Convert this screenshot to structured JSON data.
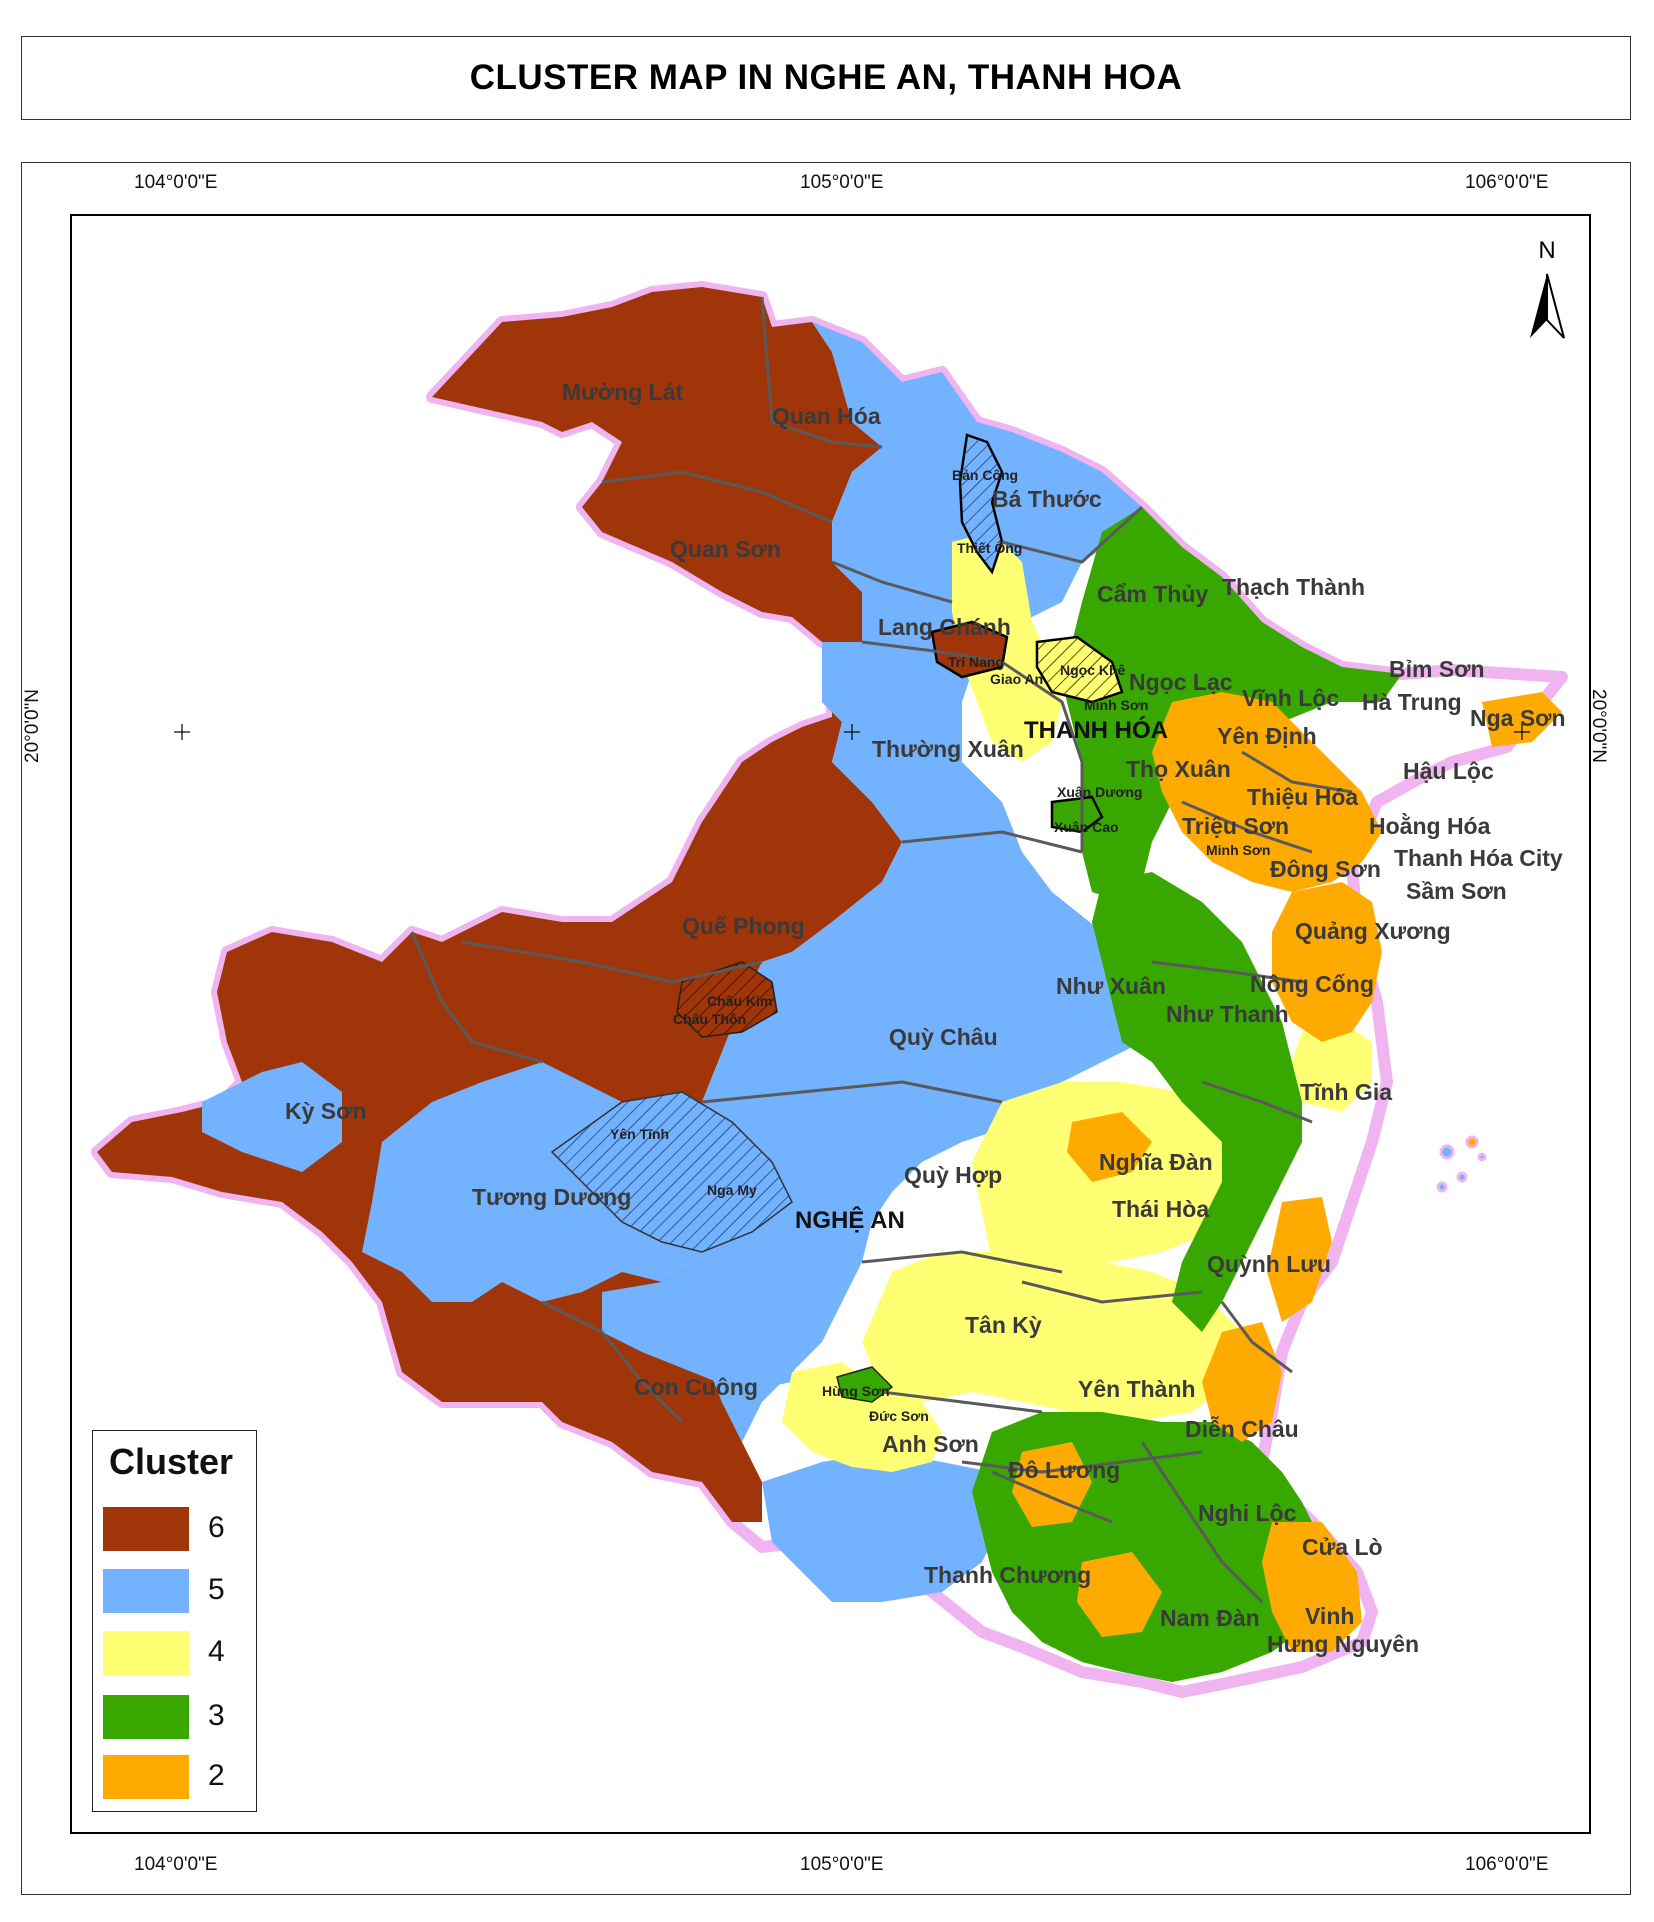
{
  "title": "CLUSTER MAP IN NGHE AN, THANH HOA",
  "coordinates": {
    "top": [
      "104°0'0\"E",
      "105°0'0\"E",
      "106°0'0\"E"
    ],
    "bottom": [
      "104°0'0\"E",
      "105°0'0\"E",
      "106°0'0\"E"
    ],
    "left": "20°0'0\"N",
    "right": "20°0'0\"N"
  },
  "north_label": "N",
  "provinces": {
    "thanh_hoa": "THANH HÓA",
    "nghe_an": "NGHỆ AN"
  },
  "colors": {
    "c6": "#A0350A",
    "c5": "#73B2FF",
    "c4": "#FFFF73",
    "c3": "#38A800",
    "c2": "#FFAA00",
    "border": "#5a5a5a",
    "coast_glow": "#f0b4f0"
  },
  "legend": {
    "title": "Cluster",
    "items": [
      {
        "label": "6",
        "color": "#A0350A"
      },
      {
        "label": "5",
        "color": "#73B2FF"
      },
      {
        "label": "4",
        "color": "#FFFF73"
      },
      {
        "label": "3",
        "color": "#38A800"
      },
      {
        "label": "2",
        "color": "#FFAA00"
      }
    ]
  },
  "district_labels": {
    "muong_lat": "Mường Lát",
    "quan_hoa": "Quan Hóa",
    "quan_son": "Quan Sơn",
    "ba_thuoc": "Bá Thước",
    "cam_thuy": "Cẩm Thủy",
    "thach_thanh": "Thạch Thành",
    "lang_chanh": "Lang Chánh",
    "ngoc_lac": "Ngọc Lạc",
    "bim_son": "Bỉm Sơn",
    "vinh_loc": "Vĩnh Lộc",
    "ha_trung": "Hà Trung",
    "nga_son": "Nga Sơn",
    "yen_dinh": "Yên Định",
    "thuong_xuan": "Thường Xuân",
    "tho_xuan": "Thọ Xuân",
    "hau_loc": "Hậu Lộc",
    "thieu_hoa": "Thiệu Hóa",
    "hoang_hoa": "Hoằng Hóa",
    "trieu_son": "Triệu Sơn",
    "thanh_hoa_city": "Thanh Hóa City",
    "dong_son": "Đông Sơn",
    "sam_son": "Sầm Sơn",
    "que_phong": "Quế Phong",
    "quang_xuong": "Quảng Xương",
    "nhu_xuan": "Như Xuân",
    "nong_cong": "Nông Cống",
    "nhu_thanh": "Như Thanh",
    "quy_chau": "Quỳ Châu",
    "tinh_gia": "Tĩnh Gia",
    "ky_son": "Kỳ Sơn",
    "nghia_dan": "Nghĩa Đàn",
    "quy_hop": "Quỳ Hợp",
    "tuong_duong": "Tương Dương",
    "thai_hoa": "Thái Hòa",
    "quynh_luu": "Quỳnh Lưu",
    "tan_ky": "Tân Kỳ",
    "yen_thanh": "Yên Thành",
    "con_cuong": "Con Cuông",
    "dien_chau": "Diễn Châu",
    "anh_son": "Anh Sơn",
    "do_luong": "Đô Lương",
    "nghi_loc": "Nghi Lộc",
    "cua_lo": "Cửa Lò",
    "thanh_chuong": "Thanh Chương",
    "vinh": "Vinh",
    "nam_dan": "Nam Đàn",
    "hung_nguyen": "Hưng Nguyên"
  },
  "commune_labels": {
    "ban_cong": "Bản Công",
    "thiet_ong": "Thiết Ống",
    "tri_nang": "Trí Nang",
    "giao_an": "Giao An",
    "ngoc_khe": "Ngọc Khê",
    "minh_son_1": "Minh Sơn",
    "xuan_duong": "Xuân Dương",
    "xuan_cao": "Xuân Cao",
    "minh_son_2": "Minh Sơn",
    "chau_kim": "Châu Kim",
    "chau_thon": "Châu Thôn",
    "yen_tinh": "Yên Tĩnh",
    "nga_my": "Nga My",
    "hung_son": "Hùng Sơn",
    "duc_son": "Đức Sơn"
  }
}
